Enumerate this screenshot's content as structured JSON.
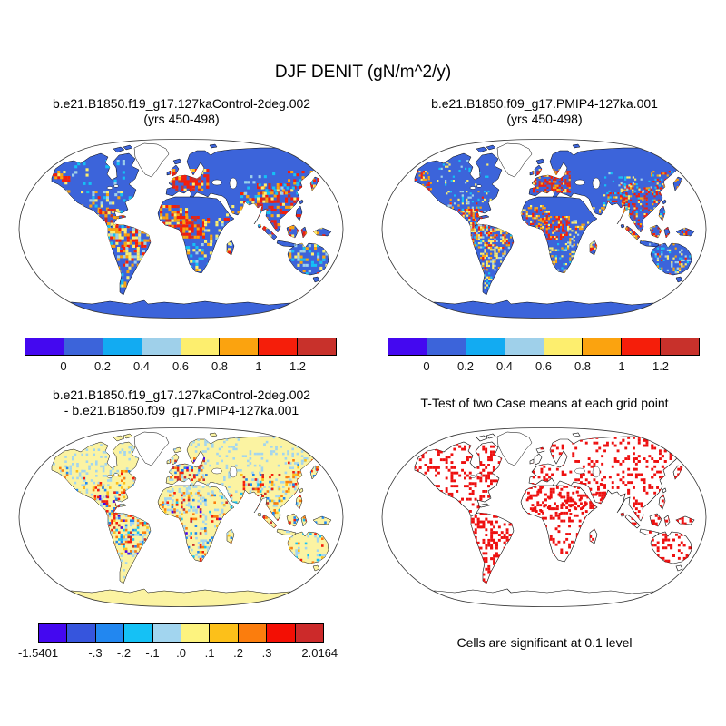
{
  "figure": {
    "title": "DJF DENIT (gN/m^2/y)",
    "variable": "DENIT",
    "season": "DJF",
    "units": "gN/m^2/y"
  },
  "panels": {
    "top_left": {
      "line1": "b.e21.B1850.f19_g17.127kaControl-2deg.002",
      "line2": "(yrs 450-498)"
    },
    "top_right": {
      "line1": "b.e21.B1850.f09_g17.PMIP4-127ka.001",
      "line2": "(yrs 450-498)"
    },
    "bottom_left": {
      "line1": "b.e21.B1850.f19_g17.127kaControl-2deg.002",
      "line2": "- b.e21.B1850.f09_g17.PMIP4-127ka.001"
    },
    "bottom_right": {
      "title": "T-Test of two Case means at each grid point",
      "caption": "Cells are significant at 0.1 level"
    }
  },
  "palette": {
    "violet": "#4408f0",
    "royal": "#3c64da",
    "blue": "#2287f0",
    "cyan": "#15c1f5",
    "lightblue": "#9fd0ea",
    "paleblue": "#a2d5ef",
    "yellow": "#fdee6e",
    "paleyellow": "#fbf3a2",
    "amber": "#fcc01a",
    "orange": "#fba30f",
    "deeporange": "#fb7d0d",
    "red": "#f51e0a",
    "darkred": "#c8312b",
    "sig": "#ee1010",
    "land_value": "#3c64da",
    "land_diff": "#fbf3a2",
    "land_ttest": "#ffffff",
    "no_data": "#ffffff",
    "coastline": "#000000",
    "outline": "#333333",
    "ocean": "#ffffff"
  },
  "colorbars": {
    "top": {
      "colors": [
        "#4408f0",
        "#3c64da",
        "#12abf2",
        "#9fd0ea",
        "#fdee6e",
        "#fba30f",
        "#f51e0a",
        "#c8312b"
      ],
      "ticks": [
        {
          "label": "0",
          "pos": 0.125
        },
        {
          "label": "0.2",
          "pos": 0.25
        },
        {
          "label": "0.4",
          "pos": 0.375
        },
        {
          "label": "0.6",
          "pos": 0.5
        },
        {
          "label": "0.8",
          "pos": 0.625
        },
        {
          "label": "1",
          "pos": 0.75
        },
        {
          "label": "1.2",
          "pos": 0.875
        }
      ]
    },
    "diff": {
      "colors": [
        "#4408f0",
        "#3655dd",
        "#2287f0",
        "#15c1f5",
        "#a2d5ef",
        "#fdf37f",
        "#fcc01a",
        "#fb7d0d",
        "#f30f04",
        "#cc2a2a"
      ],
      "ticks": [
        {
          "label": "-1.5401",
          "pos": 0.0
        },
        {
          "label": "-.3",
          "pos": 0.2
        },
        {
          "label": "-.2",
          "pos": 0.3
        },
        {
          "label": "-.1",
          "pos": 0.4
        },
        {
          "label": ".0",
          "pos": 0.5
        },
        {
          "label": ".1",
          "pos": 0.6
        },
        {
          "label": ".2",
          "pos": 0.7
        },
        {
          "label": ".3",
          "pos": 0.8
        },
        {
          "label": "2.0164",
          "pos": 0.985
        }
      ]
    }
  },
  "chart_data": [
    {
      "type": "heatmap",
      "panel": "top_left",
      "projection": "Robinson",
      "variable": "DENIT",
      "season": "DJF",
      "units": "gN/m^2/y",
      "case": "b.e21.B1850.f19_g17.127kaControl-2deg.002",
      "years": "450-498",
      "levels": [
        0,
        0.2,
        0.4,
        0.6,
        0.8,
        1,
        1.2
      ],
      "palette": [
        "#4408f0",
        "#3c64da",
        "#12abf2",
        "#9fd0ea",
        "#fdee6e",
        "#fba30f",
        "#f51e0a",
        "#c8312b"
      ],
      "summary": "Most land 0-0.2 (blue); values >0.6-1.2+ over W Europe, Central America, Amazon, Congo basin, coastal W Africa, South/Southeast Asia and Indonesia; 0.2-0.6 patches over the US, E Africa and Australia; Antarctica near 0; ocean masked white; Greenland no data."
    },
    {
      "type": "heatmap",
      "panel": "top_right",
      "projection": "Robinson",
      "variable": "DENIT",
      "season": "DJF",
      "units": "gN/m^2/y",
      "case": "b.e21.B1850.f09_g17.PMIP4-127ka.001",
      "years": "450-498",
      "levels": [
        0,
        0.2,
        0.4,
        0.6,
        0.8,
        1,
        1.2
      ],
      "palette": [
        "#4408f0",
        "#3c64da",
        "#12abf2",
        "#9fd0ea",
        "#fdee6e",
        "#fba30f",
        "#f51e0a",
        "#c8312b"
      ],
      "summary": "Same pattern as control at finer (1-degree) grid: blue land with red/orange maxima over Europe, tropics, SE Asia, Indonesia; cyan patches over Australia and central Asia."
    },
    {
      "type": "heatmap",
      "panel": "bottom_left",
      "projection": "Robinson",
      "variable": "DENIT difference",
      "units": "gN/m^2/y",
      "case": "b.e21.B1850.f19_g17.127kaControl-2deg.002 minus b.e21.B1850.f09_g17.PMIP4-127ka.001",
      "min": -1.5401,
      "max": 2.0164,
      "boundary_levels": [
        -0.4,
        -0.3,
        -0.2,
        -0.1,
        0,
        0.1,
        0.2,
        0.3,
        0.4
      ],
      "tick_labels": [
        "-1.5401",
        "-.3",
        "-.2",
        "-.1",
        ".0",
        ".1",
        ".2",
        ".3",
        "2.0164"
      ],
      "palette": [
        "#4408f0",
        "#3655dd",
        "#2287f0",
        "#15c1f5",
        "#a2d5ef",
        "#fdf37f",
        "#fcc01a",
        "#fb7d0d",
        "#f30f04",
        "#cc2a2a"
      ],
      "summary": "Differences within +/-0.1 (pale yellow / light blue) over most land including Antarctica; large mixed positive and negative anomalies over Amazon, tropical Africa, Mexico, SE Asia and Indonesia; strong positive (dark red) patch over W/C Europe."
    },
    {
      "type": "map",
      "panel": "bottom_right",
      "projection": "Robinson",
      "title": "T-Test of two Case means at each grid point",
      "significance_level": 0.1,
      "significant_color": "#ee1010",
      "summary": "Red grid cells mark points where the two case means differ significantly at the 0.1 level; dense over Europe, Russia, China, Africa, the Americas, Indonesia and Australia; none over Antarctica; continents drawn as outlines only."
    }
  ]
}
